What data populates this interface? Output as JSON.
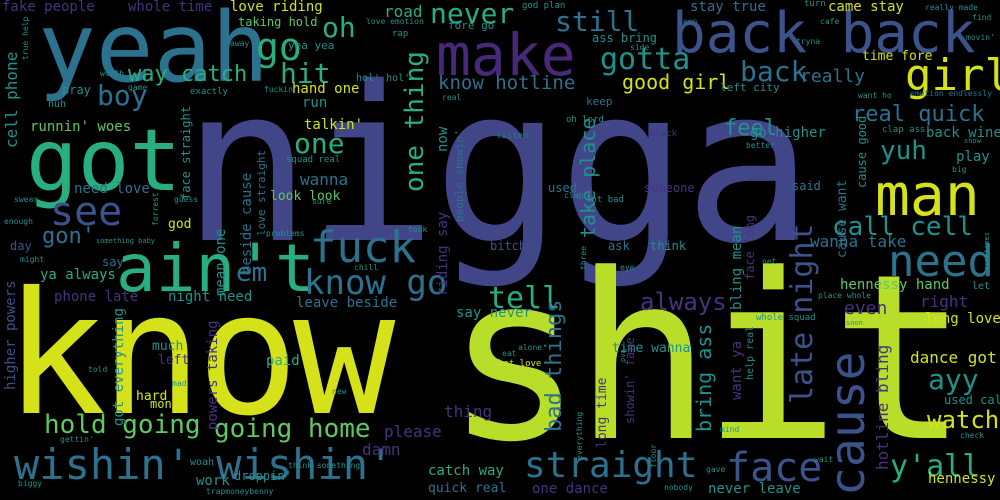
{
  "words": {
    "nigga": "nigga",
    "know": "know",
    "shit": "shit",
    "yeah": "yeah",
    "got": "got",
    "make": "make",
    "back_back": "back back",
    "aint": "ain't",
    "man": "man",
    "fuck": "fuck",
    "wishin_wishin": "wishin' wishin'",
    "cause": "cause",
    "need": "need",
    "girl": "girl",
    "face": "face",
    "straight": "straight",
    "go": "go",
    "see": "see",
    "know_go": "know go",
    "hit": "hit",
    "boy": "boy",
    "still": "still",
    "gotta": "gotta",
    "never": "never",
    "tell": "tell",
    "late_night": "late night",
    "one_thing": "one thing",
    "yall": "y'all",
    "call_cell": "call cell",
    "oh": "oh",
    "one": "one",
    "back": "back",
    "em": "em",
    "hold_going": "hold going",
    "going_home": "going home",
    "ayy": "ayy",
    "watch": "watch",
    "real_quick": "real quick",
    "yuh": "yuh",
    "always": "always",
    "gon": "gon'",
    "way_catch": "way catch",
    "good_girl": "good girl",
    "know_hotline": "know hotline",
    "feel": "feel",
    "take_place": "take place",
    "bad_things": "bad things",
    "bring_ass": "bring ass",
    "hotline_bling": "hotline bling",
    "hennessy_hand": "hennessy hand",
    "dance_got": "dance got",
    "long_love": "long love",
    "hennessy": "hennessy",
    "right": "right",
    "even": "even",
    "play": "play",
    "go_higher": "go higher",
    "back_wine": "back wine",
    "really": "really",
    "came_stay": "came stay",
    "time_fore": "time fore",
    "stay_true": "stay true",
    "love_riding": "love riding",
    "road": "road",
    "taking_hold": "taking hold",
    "whole_time": "whole time",
    "fake_people": "fake people",
    "cell_phone": "cell phone",
    "runnin_woes": "runnin' woes",
    "need_love": "need love",
    "talkin": "talkin'",
    "wanna": "wanna",
    "look_look": "look look",
    "hand_one": "hand one",
    "run": "run",
    "phone_late": "phone late",
    "night_need": "night need",
    "leave_beside": "leave beside",
    "say_never": "say never",
    "thing": "thing",
    "please": "please",
    "damn": "damn",
    "catch_way": "catch way",
    "quick_real": "quick real",
    "one_dance": "one dance",
    "never_leave": "never leave",
    "mean_one": "mean one",
    "beside_cause": "beside cause",
    "ya_always": "ya always",
    "wanna_take": "wanna take",
    "someone": "someone",
    "used_call": "used call",
    "long_time": "long time",
    "time_wanna": "time wanna",
    "hard": "hard",
    "much": "much",
    "left": "left",
    "money": "money",
    "work": "work",
    "paid": "paid",
    "higher_powers": "higher powers",
    "powers_taking": "powers taking",
    "got_everything": "got everything",
    "god": "god",
    "say": "say",
    "day": "day",
    "pray": "pray",
    "used": "used",
    "bitches": "bitches",
    "ask": "ask",
    "think": "think",
    "said": "said",
    "left_city": "left city",
    "cause_good": "cause good",
    "cause_want": "cause want",
    "bling_mean": "bling mean",
    "want_ya": "want ya",
    "face_long": "face long",
    "riding_say": "riding say",
    "now": "now",
    "people_showin": "people showin'",
    "showin_fake": "showin' fake",
    "face_straight": "face straight",
    "love_straight": "love straight",
    "droppin": "droppin'",
    "woah": "woah",
    "nuh": "nuh",
    "exactly": "exactly",
    "keep": "keep",
    "oh_lord": "oh lord",
    "listen": "listen",
    "lot_bad": "lot bad",
    "god_plan": "god plan",
    "fore_go": "fore go",
    "ass_bring": "ass bring",
    "rap": "rap",
    "yea_yea": "yea yea",
    "hol_hol": "hol' hol'",
    "love_emotion": "love emotion",
    "emotion_endlessly": "emotion endlessly",
    "really_made": "really made",
    "find": "find",
    "turn": "turn",
    "seen": "seen",
    "side": "side",
    "tryna": "tryna",
    "movin": "movin'",
    "want_ho": "want ho",
    "clap_ass": "clap ass",
    "better": "better",
    "whole_squad": "whole squad",
    "place_whole": "place whole",
    "let": "let",
    "net": "net",
    "soon": "soon",
    "help_real": "help real",
    "alone": "alone",
    "eat": "eat",
    "hot_love": "hot love",
    "gave": "gave",
    "nobody": "nobody",
    "wait": "wait",
    "check": "check",
    "biggy": "biggy",
    "gettin": "gettin'",
    "trapmoneybenny": "trapmoneybenny",
    "think_something": "think something",
    "new": "new",
    "mad": "mad",
    "told": "told",
    "swear": "swear",
    "enough": "enough",
    "might": "might",
    "guess": "guess",
    "something_baby": "something baby",
    "problems": "problems",
    "took": "took",
    "chill": "chill",
    "sure": "sure",
    "squad_real": "squad real",
    "forrest": "forrest",
    "clap": "clap",
    "three": "three",
    "eye": "eye",
    "black": "black",
    "real": "real",
    "fuckin": "fuckin'",
    "game": "game",
    "worth": "worth",
    "away": "away",
    "true_help": "true help",
    "show": "show",
    "big": "big",
    "sometimes": "sometimes",
    "everything": "everything",
    "floor": "floor",
    "mind": "mind",
    "ova": "ova",
    "cafe": "cafe"
  },
  "palette": {
    "yellow": "#d5e21a",
    "lime": "#b8de29",
    "indigo": "#404688",
    "blue": "#3b528b",
    "teal": "#2c728e",
    "cyan": "#21918c",
    "green": "#28ae80",
    "mint": "#5ec962",
    "purple": "#482878",
    "violet": "#46337e",
    "dark": "#440154"
  }
}
